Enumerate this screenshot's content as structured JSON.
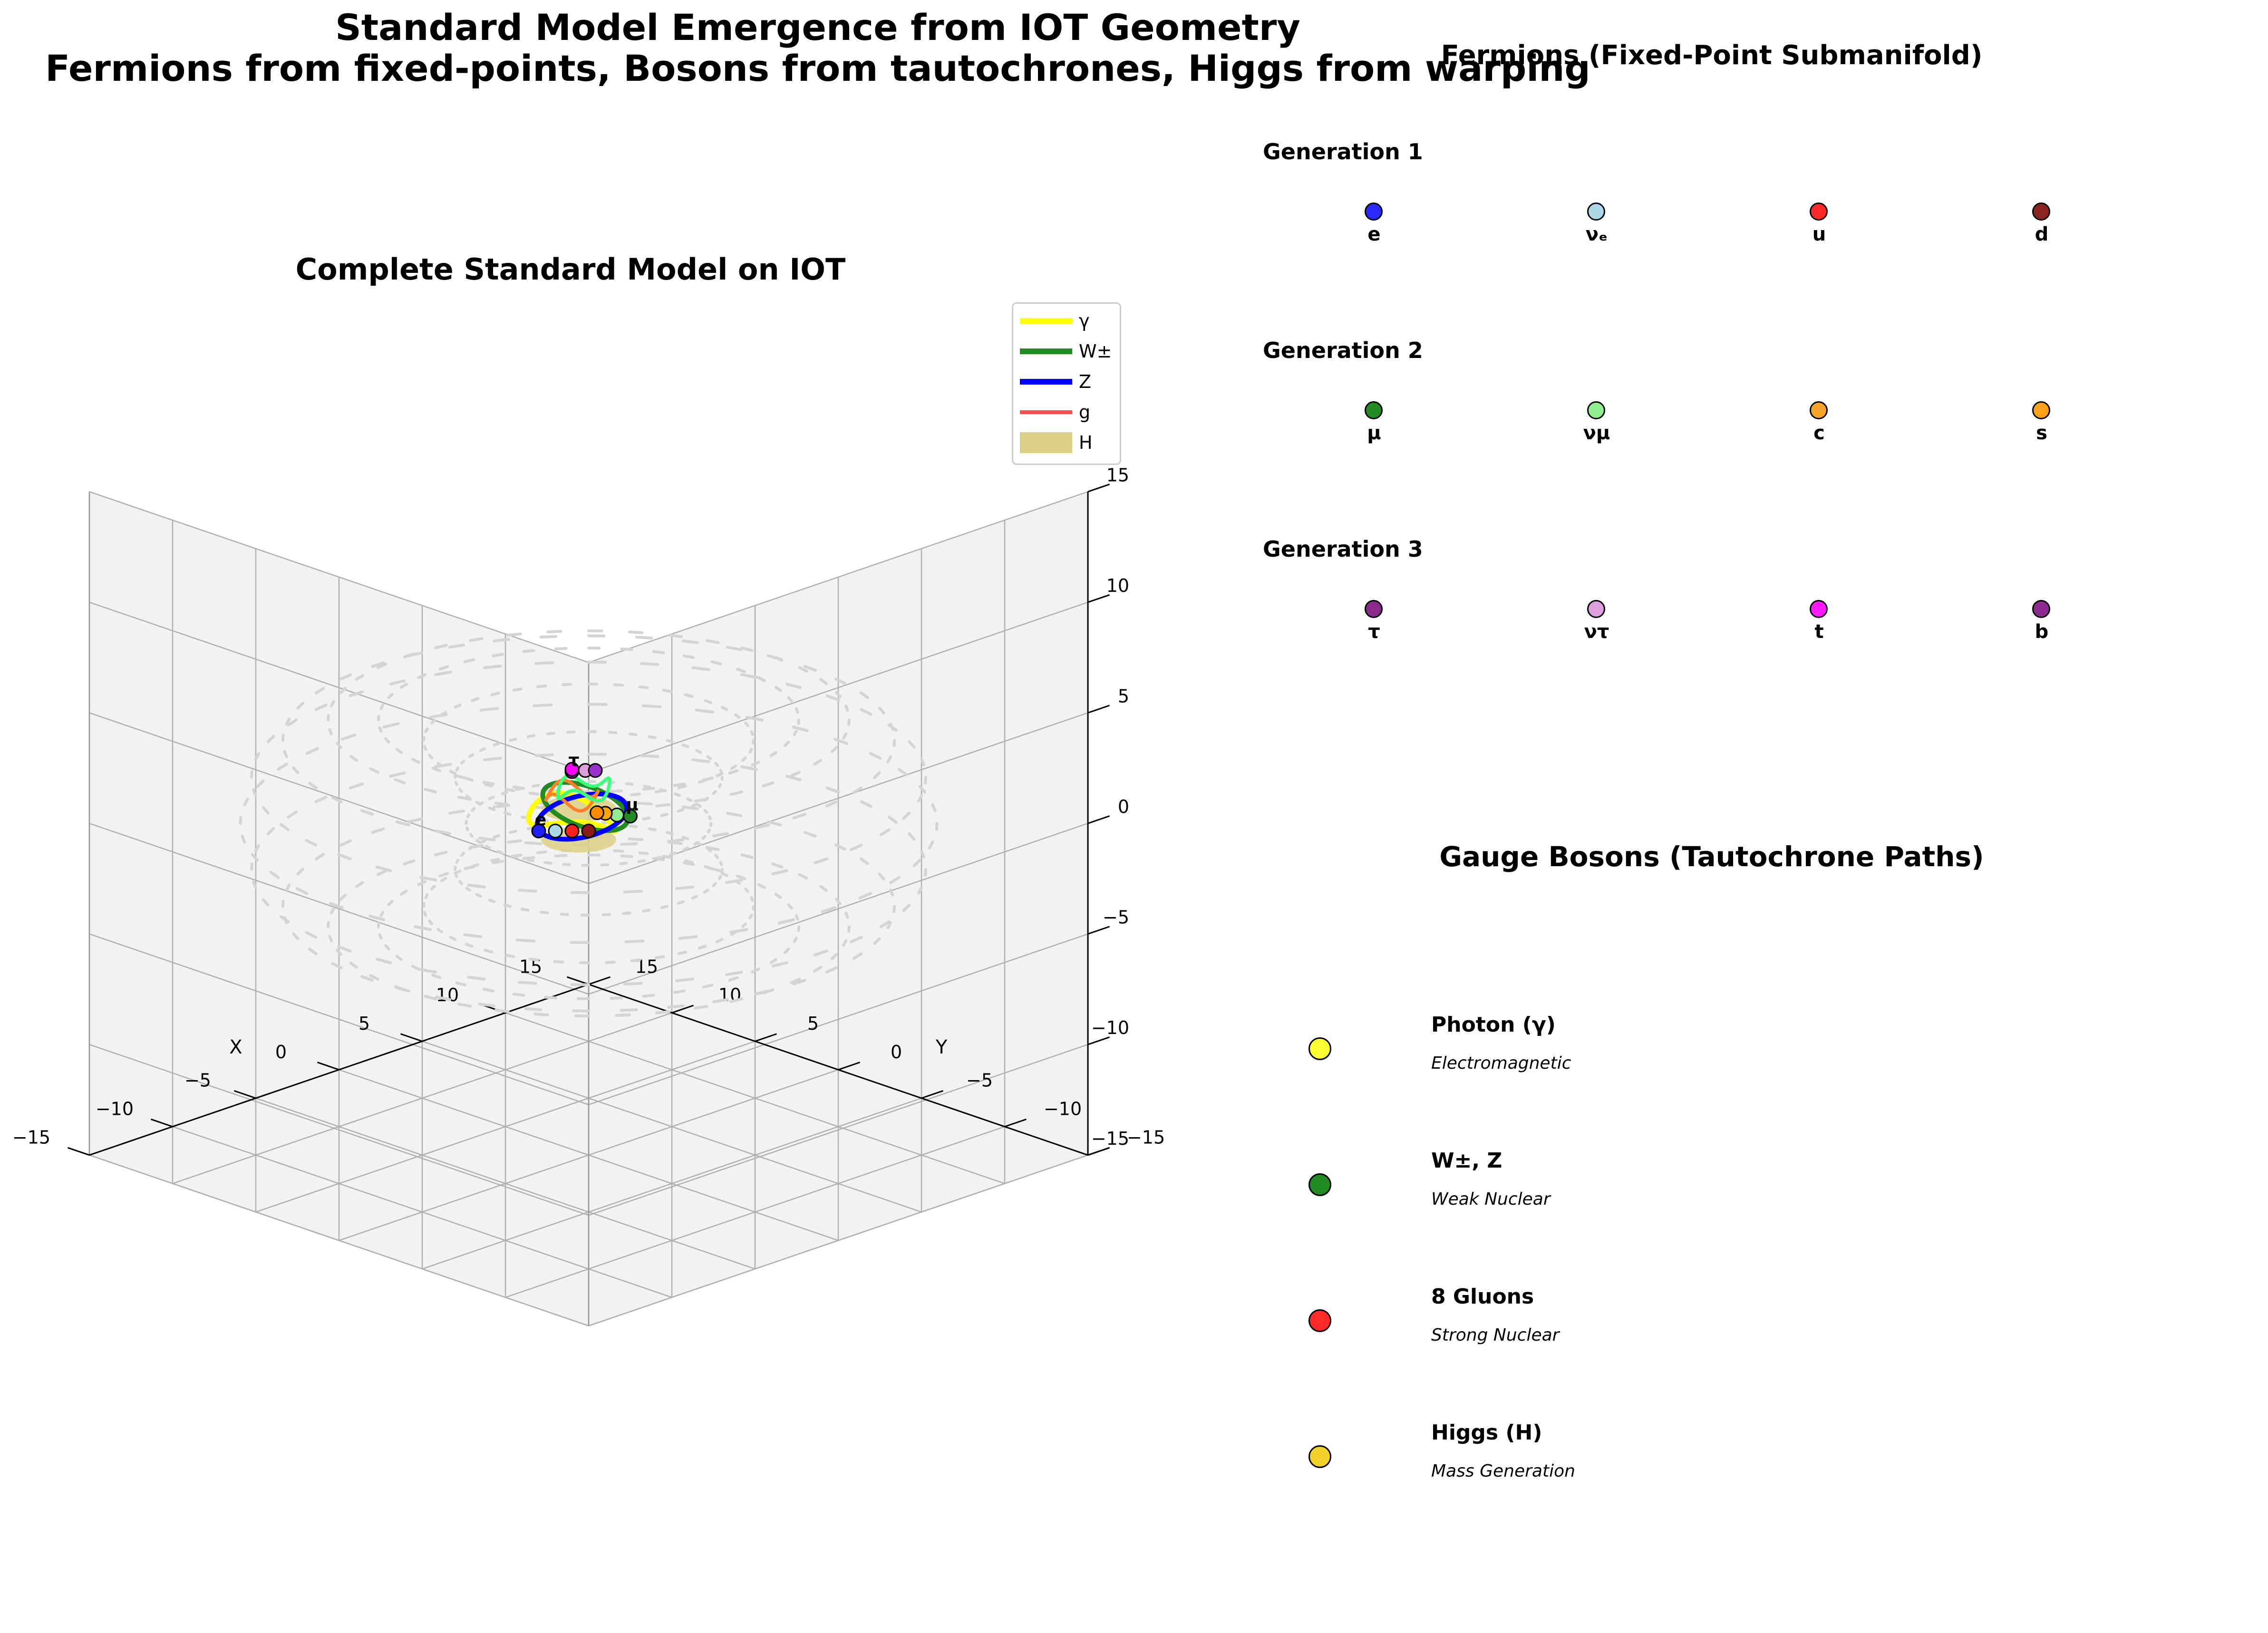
{
  "suptitle": {
    "line1": "Standard Model Emergence from IOT Geometry",
    "line2": "Fermions from fixed-points, Bosons from tautochrones, Higgs from warping"
  },
  "chart_data": [
    {
      "type": "scatter3d",
      "title": "Complete Standard Model on IOT",
      "xlabel": "X",
      "ylabel": "Y",
      "zlabel": "",
      "xlim": [
        -15,
        15
      ],
      "ylim": [
        -15,
        15
      ],
      "zlim": [
        -15,
        15
      ],
      "xticks": [
        "−15",
        "−10",
        "−5",
        "0",
        "5",
        "10",
        "15"
      ],
      "yticks": [
        "−15",
        "−10",
        "−5",
        "0",
        "5",
        "10",
        "15"
      ],
      "zticks": [
        "−15",
        "−10",
        "−5",
        "0",
        "5",
        "10",
        "15"
      ],
      "grid": true,
      "legend_position": "top-right",
      "legend": [
        {
          "label": "γ",
          "color": "#ffff00",
          "style": "line"
        },
        {
          "label": "W±",
          "color": "#228b22",
          "style": "line"
        },
        {
          "label": "Z",
          "color": "#0000ff",
          "style": "line"
        },
        {
          "label": "g",
          "color": "#ff4d4d",
          "style": "line"
        },
        {
          "label": "H",
          "color": "#dcd084",
          "style": "patch"
        }
      ],
      "cluster_labels": [
        "e",
        "μ",
        "τ"
      ],
      "particles": [
        {
          "name": "e",
          "x": 2,
          "y": -1,
          "z": -0.6,
          "color": "#1f1fff"
        },
        {
          "name": "νₑ",
          "x": 1.5,
          "y": -0.5,
          "z": -0.6,
          "color": "#add8e6"
        },
        {
          "name": "u",
          "x": 1,
          "y": 0,
          "z": -0.6,
          "color": "#ff2020"
        },
        {
          "name": "d",
          "x": 0.5,
          "y": 0.5,
          "z": -0.6,
          "color": "#8b1a1a"
        },
        {
          "name": "μ",
          "x": -1,
          "y": 1.5,
          "z": 0.2,
          "color": "#228b22"
        },
        {
          "name": "νμ",
          "x": -0.5,
          "y": 1.2,
          "z": 0.2,
          "color": "#90ee90"
        },
        {
          "name": "c",
          "x": 0,
          "y": 1,
          "z": 0.2,
          "color": "#ffa500"
        },
        {
          "name": "s",
          "x": 0.3,
          "y": 0.8,
          "z": 0.2,
          "color": "#ff8c00"
        },
        {
          "name": "τ",
          "x": 0,
          "y": -1,
          "z": 2.6,
          "color": "#8e24aa"
        },
        {
          "name": "ντ",
          "x": -0.3,
          "y": -0.5,
          "z": 2.6,
          "color": "#dda0dd"
        },
        {
          "name": "t",
          "x": 0.2,
          "y": -0.8,
          "z": 2.6,
          "color": "#ff00ff"
        },
        {
          "name": "b",
          "x": -0.6,
          "y": -0.2,
          "z": 2.6,
          "color": "#9932cc"
        }
      ]
    }
  ],
  "fermions": {
    "title": "Fermions (Fixed-Point Submanifold)",
    "generations": [
      {
        "label": "Generation 1",
        "particles": [
          {
            "name": "e",
            "color": "#2b2bff"
          },
          {
            "name": "νₑ",
            "color": "#add8e6"
          },
          {
            "name": "u",
            "color": "#ff2a2a"
          },
          {
            "name": "d",
            "color": "#8b2323"
          }
        ]
      },
      {
        "label": "Generation 2",
        "particles": [
          {
            "name": "μ",
            "color": "#228b22"
          },
          {
            "name": "νμ",
            "color": "#90ee90"
          },
          {
            "name": "c",
            "color": "#f4a52a"
          },
          {
            "name": "s",
            "color": "#ff9f1a"
          }
        ]
      },
      {
        "label": "Generation 3",
        "particles": [
          {
            "name": "τ",
            "color": "#8b2a8b"
          },
          {
            "name": "ντ",
            "color": "#dda0dd"
          },
          {
            "name": "t",
            "color": "#ff1aff"
          },
          {
            "name": "b",
            "color": "#8e2a8e"
          }
        ]
      }
    ]
  },
  "bosons": {
    "title": "Gauge Bosons (Tautochrone Paths)",
    "items": [
      {
        "name": "Photon (γ)",
        "desc": "Electromagnetic",
        "color": "#ffff33"
      },
      {
        "name": "W±, Z",
        "desc": "Weak Nuclear",
        "color": "#228b22"
      },
      {
        "name": "8 Gluons",
        "desc": "Strong Nuclear",
        "color": "#ff2a2a"
      },
      {
        "name": "Higgs (H)",
        "desc": "Mass Generation",
        "color": "#f2d22a"
      }
    ]
  }
}
